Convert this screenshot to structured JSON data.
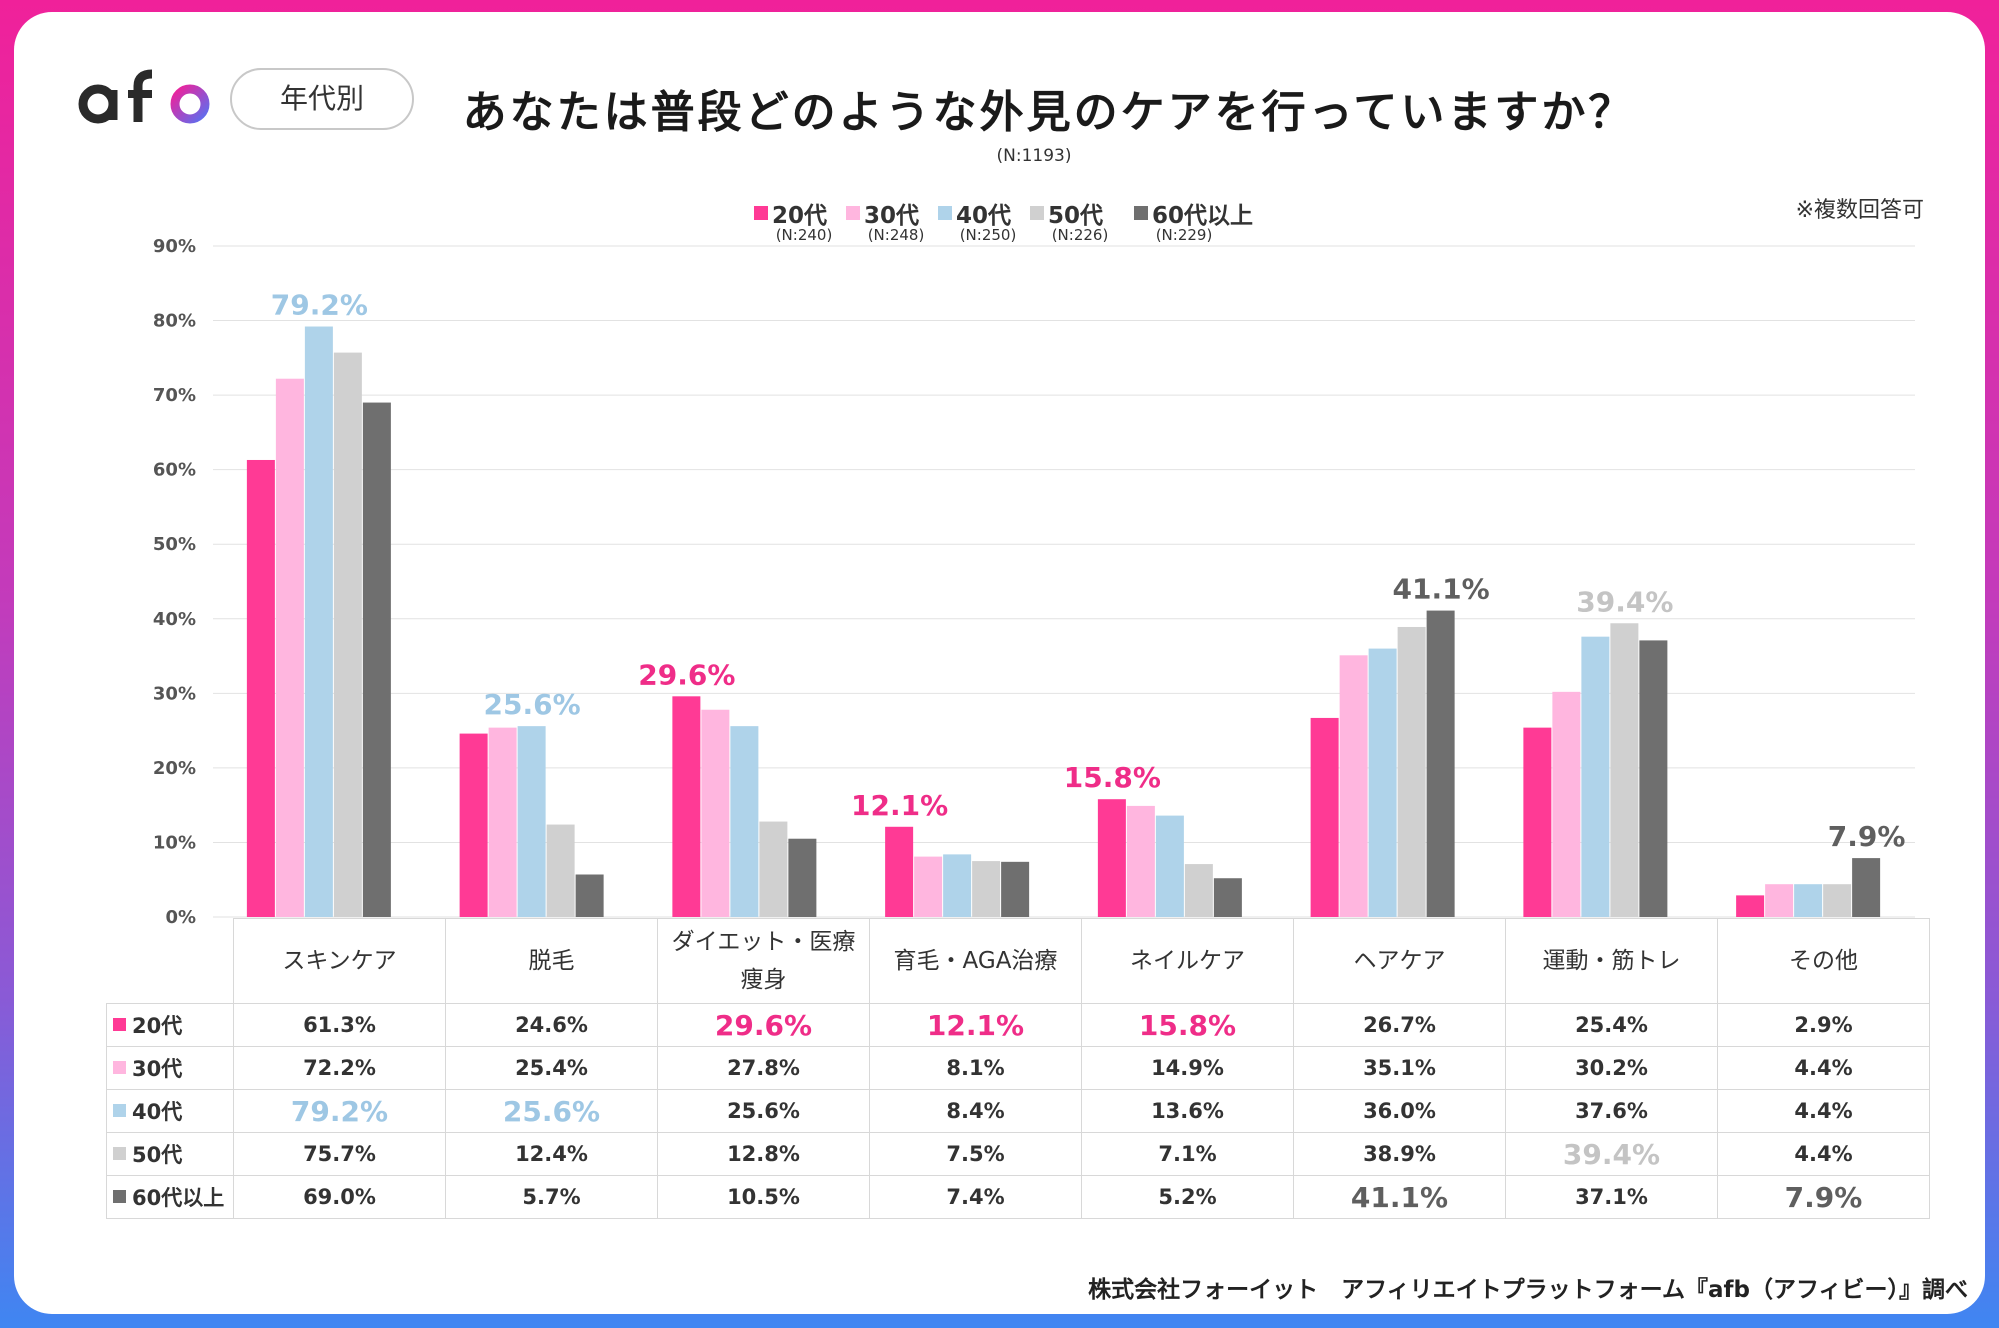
{
  "header": {
    "logo_text": "afb",
    "pill_label": "年代別",
    "title": "あなたは普段どのような外見のケアを行っていますか？",
    "sample_size": "(N:1193)",
    "note": "※複数回答可"
  },
  "footer": {
    "source": "株式会社フォーイット　アフィリエイトプラットフォーム『afb（アフィビー）』調べ"
  },
  "legend": [
    {
      "label": "20代",
      "n": "(N:240)"
    },
    {
      "label": "30代",
      "n": "(N:248)"
    },
    {
      "label": "40代",
      "n": "(N:250)"
    },
    {
      "label": "50代",
      "n": "(N:226)"
    },
    {
      "label": "60代以上",
      "n": "(N:229)"
    }
  ],
  "colors": {
    "series": [
      "#ff3a95",
      "#ffb6df",
      "#afd3ea",
      "#d0d0d0",
      "#6f6f6f"
    ],
    "highlight_text": [
      "#ef2d88",
      "#ef2d88",
      "#9ec7e4",
      "#c4c4c4",
      "#5f5f5f"
    ],
    "grid": "#e2e2e2"
  },
  "chart_data": {
    "type": "bar",
    "title": "あなたは普段どのような外見のケアを行っていますか？",
    "categories": [
      "スキンケア",
      "脱毛",
      "ダイエット・医療痩身",
      "育毛・AGA治療",
      "ネイルケア",
      "ヘアケア",
      "運動・筋トレ",
      "その他"
    ],
    "category_lines": [
      [
        "スキンケア"
      ],
      [
        "脱毛"
      ],
      [
        "ダイエット・医療",
        "痩身"
      ],
      [
        "育毛・AGA治療"
      ],
      [
        "ネイルケア"
      ],
      [
        "ヘアケア"
      ],
      [
        "運動・筋トレ"
      ],
      [
        "その他"
      ]
    ],
    "series": [
      {
        "name": "20代",
        "values": [
          61.3,
          24.6,
          29.6,
          12.1,
          15.8,
          26.7,
          25.4,
          2.9
        ]
      },
      {
        "name": "30代",
        "values": [
          72.2,
          25.4,
          27.8,
          8.1,
          14.9,
          35.1,
          30.2,
          4.4
        ]
      },
      {
        "name": "40代",
        "values": [
          79.2,
          25.6,
          25.6,
          8.4,
          13.6,
          36.0,
          37.6,
          4.4
        ]
      },
      {
        "name": "50代",
        "values": [
          75.7,
          12.4,
          12.8,
          7.5,
          7.1,
          38.9,
          39.4,
          4.4
        ]
      },
      {
        "name": "60代以上",
        "values": [
          69.0,
          5.7,
          10.5,
          7.4,
          5.2,
          41.1,
          37.1,
          7.9
        ]
      }
    ],
    "highlight_series": [
      2,
      2,
      0,
      0,
      0,
      4,
      3,
      4
    ],
    "yticks": [
      "90%",
      "80%",
      "70%",
      "60%",
      "50%",
      "40%",
      "30%",
      "20%",
      "10%",
      "0%"
    ],
    "ylim": [
      0,
      90
    ],
    "xlabel": "",
    "ylabel": "",
    "grid": true,
    "legend_position": "top"
  }
}
